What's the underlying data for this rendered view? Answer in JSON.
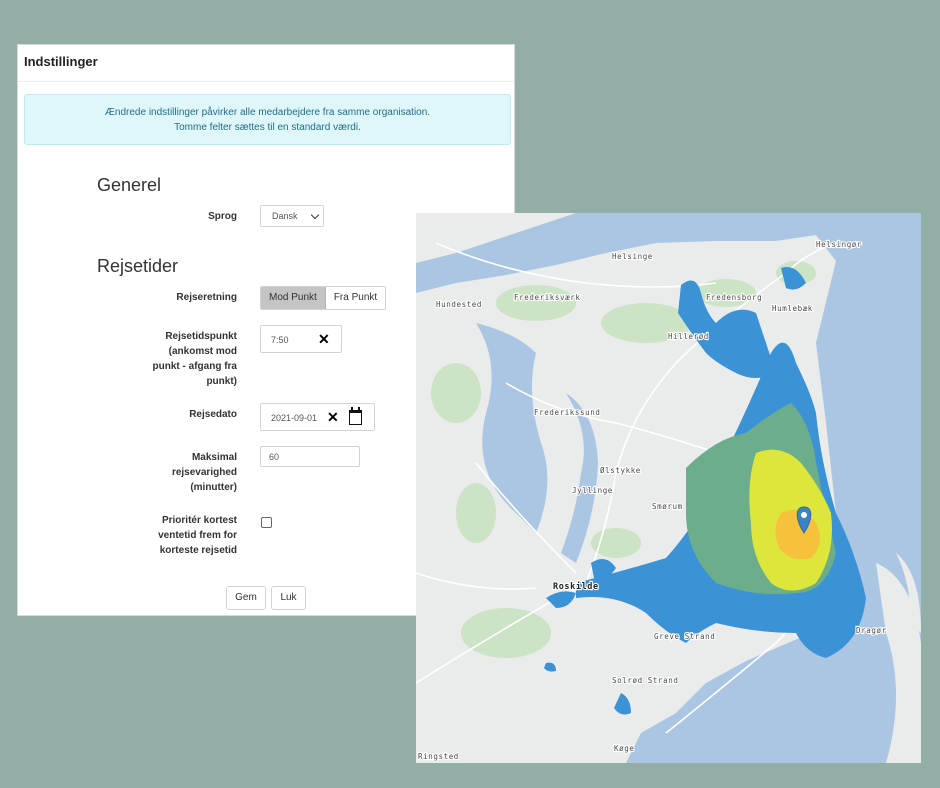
{
  "settings": {
    "title": "Indstillinger",
    "info_line1": "Ændrede indstillinger påvirker alle medarbejdere fra samme organisation.",
    "info_line2": "Tomme felter sættes til en standard værdi.",
    "general_heading": "Generel",
    "language_label": "Sprog",
    "language_value": "Dansk",
    "travel_heading": "Rejsetider",
    "direction_label": "Rejseretning",
    "direction_options": [
      "Mod Punkt",
      "Fra Punkt"
    ],
    "direction_selected": "Mod Punkt",
    "time_label_lines": [
      "Rejsetidspunkt",
      "(ankomst mod",
      "punkt - afgang fra",
      "punkt)"
    ],
    "time_value": "7:50",
    "date_label": "Rejsedato",
    "date_value": "2021-09-01",
    "duration_label_lines": [
      "Maksimal",
      "rejsevarighed",
      "(minutter)"
    ],
    "duration_value": "60",
    "priority_label_lines": [
      "Prioritér kortest",
      "ventetid frem for",
      "korteste rejsetid"
    ],
    "priority_checked": false,
    "save_label": "Gem",
    "close_label": "Luk"
  },
  "map": {
    "place_labels": [
      "Helsingør",
      "Helsinge",
      "Hundested",
      "Frederiksværk",
      "Fredensborg",
      "Humlebæk",
      "Hillerød",
      "Frederikssund",
      "Ølstykke",
      "Jyllinge",
      "Smørum",
      "Roskilde",
      "Greve Strand",
      "Solrød Strand",
      "Køge",
      "Ringsted",
      "Dragør"
    ],
    "legend_colors": {
      "water": "#aac6e2",
      "land": "#e9eceb",
      "green": "#cde3c5",
      "reach_far": "#3b93d6",
      "reach_mid": "#6cae8c",
      "reach_near": "#dde63a",
      "reach_core": "#f7c23b",
      "pin": "#3d82c3"
    }
  }
}
